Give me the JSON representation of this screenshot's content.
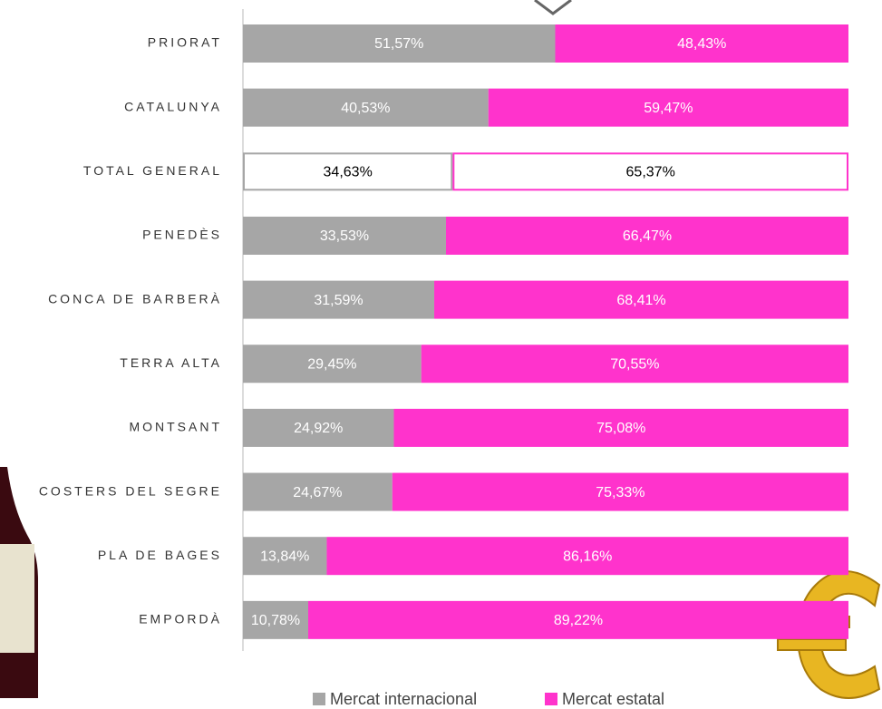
{
  "chart_data": {
    "type": "stacked-bar-horizontal",
    "categories": [
      "PRIORAT",
      "CATALUNYA",
      "TOTAL GENERAL",
      "PENEDÈS",
      "CONCA DE BARBERÀ",
      "TERRA ALTA",
      "MONTSANT",
      "COSTERS DEL SEGRE",
      "PLA DE BAGES",
      "EMPORDÀ"
    ],
    "series": [
      {
        "name": "Mercat internacional",
        "color": "#a6a6a6",
        "values": [
          51.57,
          40.53,
          34.63,
          33.53,
          31.59,
          29.45,
          24.92,
          24.67,
          13.84,
          10.78
        ],
        "value_labels": [
          "51,57%",
          "40,53%",
          "34,63%",
          "33,53%",
          "31,59%",
          "29,45%",
          "24,92%",
          "24,67%",
          "13,84%",
          "10,78%"
        ]
      },
      {
        "name": "Mercat estatal",
        "color": "#ff33cc",
        "values": [
          48.43,
          59.47,
          65.37,
          66.47,
          68.41,
          70.55,
          75.08,
          75.33,
          86.16,
          89.22
        ],
        "value_labels": [
          "48,43%",
          "59,47%",
          "65,37%",
          "66,47%",
          "68,41%",
          "70,55%",
          "75,08%",
          "75,33%",
          "86,16%",
          "89,22%"
        ]
      }
    ],
    "xlim": [
      0,
      100
    ],
    "outlined": [
      2
    ]
  }
}
